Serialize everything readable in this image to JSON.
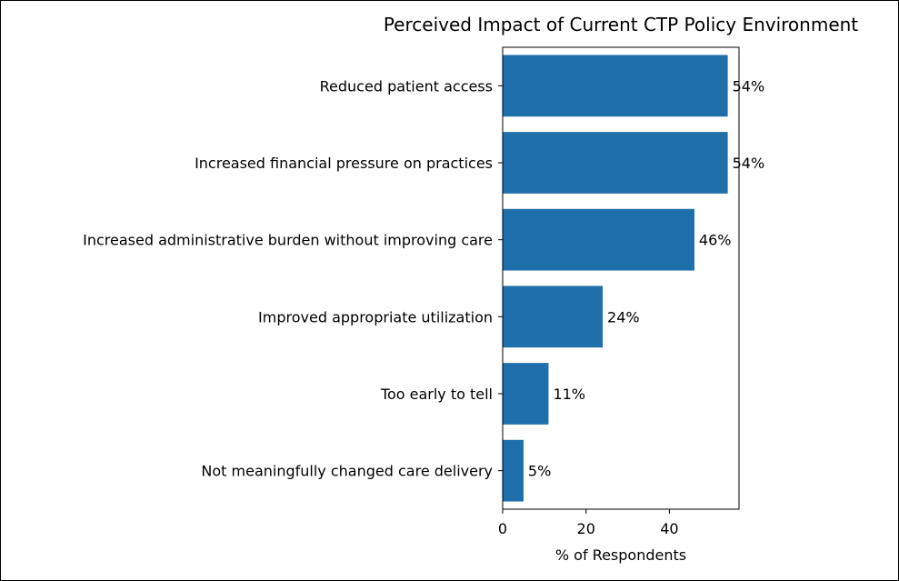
{
  "chart_data": {
    "type": "bar",
    "orientation": "horizontal",
    "title": "Perceived Impact of Current CTP Policy Environment",
    "xlabel": "% of Respondents",
    "ylabel": "",
    "categories": [
      "Reduced patient access",
      "Increased financial pressure on practices",
      "Increased administrative burden without improving care",
      "Improved appropriate utilization",
      "Too early to tell",
      "Not meaningfully changed care delivery"
    ],
    "values": [
      54,
      54,
      46,
      24,
      11,
      5
    ],
    "data_labels": [
      "54%",
      "54%",
      "46%",
      "24%",
      "11%",
      "5%"
    ],
    "xlim": [
      0,
      56.7
    ],
    "xticks": [
      0,
      20,
      40
    ],
    "xtick_labels": [
      "0",
      "20",
      "40"
    ],
    "bar_color": "#1f6fab",
    "grid": false,
    "legend": false
  }
}
